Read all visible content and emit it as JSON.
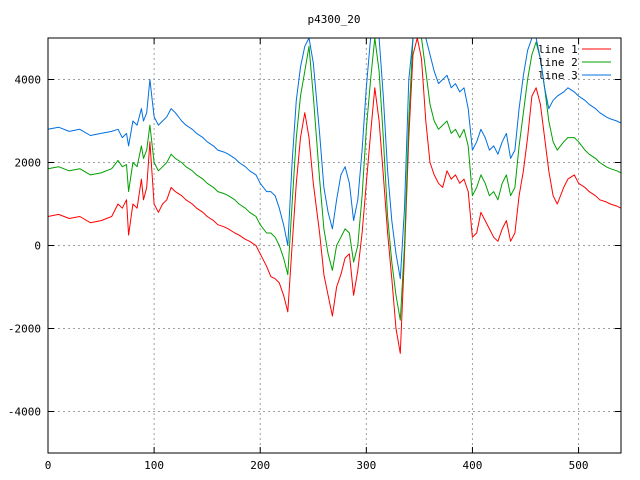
{
  "chart_data": {
    "type": "line",
    "title": "p4300_20",
    "xlabel": "",
    "ylabel": "",
    "xlim": [
      0,
      540
    ],
    "ylim": [
      -5000,
      5000
    ],
    "xticks": [
      0,
      100,
      200,
      300,
      400,
      500
    ],
    "yticks": [
      -4000,
      -2000,
      0,
      2000,
      4000
    ],
    "grid": true,
    "legend_position": "top-right",
    "series": [
      {
        "name": "line 1",
        "color": "#ff0000",
        "x": [
          0,
          10,
          20,
          30,
          40,
          50,
          60,
          66,
          70,
          74,
          76,
          80,
          84,
          88,
          90,
          93,
          96,
          100,
          104,
          108,
          112,
          116,
          120,
          126,
          130,
          136,
          140,
          146,
          150,
          156,
          160,
          166,
          170,
          176,
          180,
          186,
          190,
          196,
          200,
          206,
          210,
          214,
          218,
          222,
          226,
          230,
          234,
          238,
          242,
          246,
          250,
          256,
          260,
          264,
          268,
          272,
          276,
          280,
          284,
          288,
          292,
          296,
          300,
          304,
          308,
          312,
          316,
          320,
          324,
          328,
          332,
          336,
          340,
          344,
          348,
          352,
          356,
          360,
          364,
          368,
          372,
          376,
          380,
          384,
          388,
          392,
          396,
          400,
          404,
          408,
          412,
          416,
          420,
          424,
          428,
          432,
          436,
          440,
          444,
          448,
          452,
          456,
          460,
          464,
          468,
          472,
          476,
          480,
          486,
          490,
          496,
          500,
          506,
          510,
          516,
          520,
          526,
          530,
          536,
          540
        ],
        "y": [
          700,
          750,
          650,
          700,
          550,
          600,
          700,
          1000,
          900,
          1100,
          250,
          1000,
          900,
          1600,
          1100,
          1400,
          2500,
          1000,
          800,
          1000,
          1100,
          1400,
          1300,
          1200,
          1100,
          1000,
          900,
          800,
          700,
          600,
          500,
          450,
          400,
          300,
          250,
          150,
          100,
          0,
          -200,
          -500,
          -750,
          -800,
          -900,
          -1200,
          -1600,
          0,
          1500,
          2600,
          3200,
          2600,
          1500,
          300,
          -700,
          -1200,
          -1700,
          -1000,
          -700,
          -300,
          -200,
          -1200,
          -600,
          300,
          1500,
          2700,
          3800,
          3000,
          1700,
          300,
          -800,
          -2000,
          -2600,
          -200,
          2600,
          4600,
          5000,
          4500,
          3000,
          2000,
          1700,
          1500,
          1400,
          1800,
          1600,
          1700,
          1500,
          1600,
          1300,
          200,
          300,
          800,
          600,
          400,
          200,
          100,
          400,
          600,
          100,
          300,
          1200,
          1800,
          2600,
          3600,
          3800,
          3400,
          2600,
          1800,
          1200,
          1000,
          1400,
          1600,
          1700,
          1500,
          1400,
          1300,
          1200,
          1100,
          1050,
          1000,
          950,
          900
        ]
      },
      {
        "name": "line 2",
        "color": "#00a000",
        "x": [
          0,
          10,
          20,
          30,
          40,
          50,
          60,
          66,
          70,
          74,
          76,
          80,
          84,
          88,
          90,
          93,
          96,
          100,
          104,
          108,
          112,
          116,
          120,
          126,
          130,
          136,
          140,
          146,
          150,
          156,
          160,
          166,
          170,
          176,
          180,
          186,
          190,
          196,
          200,
          206,
          210,
          214,
          218,
          222,
          226,
          230,
          234,
          238,
          242,
          246,
          250,
          256,
          260,
          264,
          268,
          272,
          276,
          280,
          284,
          288,
          292,
          296,
          300,
          304,
          308,
          312,
          316,
          320,
          324,
          328,
          332,
          336,
          340,
          344,
          348,
          352,
          356,
          360,
          364,
          368,
          372,
          376,
          380,
          384,
          388,
          392,
          396,
          400,
          404,
          408,
          412,
          416,
          420,
          424,
          428,
          432,
          436,
          440,
          444,
          448,
          452,
          456,
          460,
          464,
          468,
          472,
          476,
          480,
          486,
          490,
          496,
          500,
          506,
          510,
          516,
          520,
          526,
          530,
          536,
          540
        ],
        "y": [
          1850,
          1900,
          1800,
          1850,
          1700,
          1750,
          1850,
          2050,
          1900,
          1950,
          1300,
          2000,
          1900,
          2400,
          2100,
          2300,
          2900,
          2000,
          1800,
          1900,
          2000,
          2200,
          2100,
          2000,
          1900,
          1800,
          1700,
          1600,
          1500,
          1400,
          1300,
          1250,
          1200,
          1100,
          1000,
          900,
          800,
          700,
          500,
          300,
          300,
          200,
          0,
          -300,
          -700,
          1000,
          2600,
          3600,
          4200,
          4800,
          3600,
          1600,
          400,
          -200,
          -600,
          0,
          200,
          400,
          300,
          -400,
          0,
          1200,
          2800,
          4000,
          5000,
          4200,
          2600,
          700,
          -400,
          -1200,
          -1800,
          0,
          3000,
          5000,
          5000,
          5000,
          4200,
          3400,
          3000,
          2800,
          2900,
          3000,
          2700,
          2800,
          2600,
          2800,
          2400,
          1200,
          1400,
          1700,
          1500,
          1200,
          1300,
          1100,
          1500,
          1700,
          1200,
          1400,
          2400,
          3200,
          4000,
          4600,
          4900,
          4500,
          3800,
          3000,
          2500,
          2300,
          2500,
          2600,
          2600,
          2500,
          2300,
          2200,
          2100,
          2000,
          1900,
          1850,
          1800,
          1750
        ]
      },
      {
        "name": "line 3",
        "color": "#0070e0",
        "x": [
          0,
          10,
          20,
          30,
          40,
          50,
          60,
          66,
          70,
          74,
          76,
          80,
          84,
          88,
          90,
          93,
          96,
          100,
          104,
          108,
          112,
          116,
          120,
          126,
          130,
          136,
          140,
          146,
          150,
          156,
          160,
          166,
          170,
          176,
          180,
          186,
          190,
          196,
          200,
          206,
          210,
          214,
          218,
          222,
          226,
          230,
          234,
          238,
          242,
          246,
          250,
          256,
          260,
          264,
          268,
          272,
          276,
          280,
          284,
          288,
          292,
          296,
          300,
          304,
          308,
          312,
          316,
          320,
          324,
          328,
          332,
          336,
          340,
          344,
          348,
          352,
          356,
          360,
          364,
          368,
          372,
          376,
          380,
          384,
          388,
          392,
          396,
          400,
          404,
          408,
          412,
          416,
          420,
          424,
          428,
          432,
          436,
          440,
          444,
          448,
          452,
          456,
          460,
          464,
          468,
          472,
          476,
          480,
          486,
          490,
          496,
          500,
          506,
          510,
          516,
          520,
          526,
          530,
          536,
          540
        ],
        "y": [
          2800,
          2850,
          2750,
          2800,
          2650,
          2700,
          2750,
          2800,
          2600,
          2700,
          2400,
          3000,
          2900,
          3300,
          3000,
          3200,
          4000,
          3100,
          2900,
          3000,
          3100,
          3300,
          3200,
          3000,
          2900,
          2800,
          2700,
          2600,
          2500,
          2400,
          2300,
          2250,
          2200,
          2100,
          2000,
          1900,
          1800,
          1700,
          1500,
          1300,
          1300,
          1200,
          900,
          500,
          0,
          2000,
          3500,
          4300,
          4800,
          5000,
          4400,
          2700,
          1400,
          800,
          400,
          1100,
          1700,
          1900,
          1500,
          600,
          1100,
          2300,
          3800,
          5000,
          5000,
          5000,
          3600,
          1800,
          600,
          -200,
          -800,
          900,
          4000,
          5000,
          5000,
          5000,
          5000,
          4600,
          4200,
          3900,
          4000,
          4100,
          3800,
          3900,
          3700,
          3800,
          3300,
          2300,
          2500,
          2800,
          2600,
          2300,
          2400,
          2200,
          2500,
          2700,
          2100,
          2300,
          3300,
          4100,
          4700,
          5000,
          5000,
          4500,
          3800,
          3300,
          3500,
          3600,
          3700,
          3800,
          3700,
          3600,
          3500,
          3400,
          3300,
          3200,
          3100,
          3050,
          3000,
          2950
        ]
      }
    ]
  }
}
